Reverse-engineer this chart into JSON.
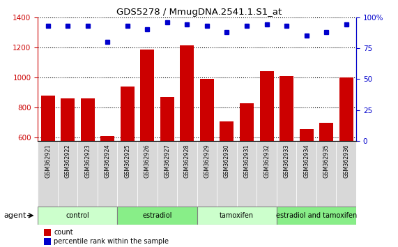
{
  "title": "GDS5278 / MmugDNA.2541.1.S1_at",
  "samples": [
    "GSM362921",
    "GSM362922",
    "GSM362923",
    "GSM362924",
    "GSM362925",
    "GSM362926",
    "GSM362927",
    "GSM362928",
    "GSM362929",
    "GSM362930",
    "GSM362931",
    "GSM362932",
    "GSM362933",
    "GSM362934",
    "GSM362935",
    "GSM362936"
  ],
  "counts": [
    880,
    860,
    860,
    610,
    940,
    1185,
    870,
    1215,
    990,
    710,
    830,
    1040,
    1010,
    660,
    700,
    1000
  ],
  "percentiles": [
    93,
    93,
    93,
    80,
    93,
    90,
    96,
    94,
    93,
    88,
    93,
    94,
    93,
    85,
    88,
    94
  ],
  "bar_color": "#cc0000",
  "dot_color": "#0000cc",
  "ylim_left": [
    580,
    1400
  ],
  "ylim_right": [
    0,
    100
  ],
  "yticks_left": [
    600,
    800,
    1000,
    1200,
    1400
  ],
  "yticks_right": [
    0,
    25,
    50,
    75,
    100
  ],
  "groups": [
    {
      "label": "control",
      "start": 0,
      "end": 4,
      "color": "#ccffcc"
    },
    {
      "label": "estradiol",
      "start": 4,
      "end": 8,
      "color": "#88ee88"
    },
    {
      "label": "tamoxifen",
      "start": 8,
      "end": 12,
      "color": "#ccffcc"
    },
    {
      "label": "estradiol and tamoxifen",
      "start": 12,
      "end": 16,
      "color": "#88ee88"
    }
  ],
  "xlabel_agent": "agent",
  "legend_count_label": "count",
  "legend_percentile_label": "percentile rank within the sample",
  "background_color": "#ffffff",
  "plot_bg_color": "#ffffff",
  "tick_area_color": "#d8d8d8"
}
